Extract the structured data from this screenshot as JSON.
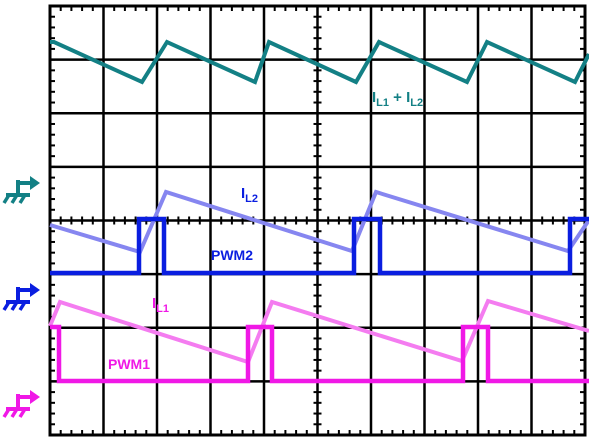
{
  "labels": {
    "il1_il2": {
      "I": "I",
      "sub1": "L1",
      "plus": " + I",
      "sub2": "L2"
    },
    "il2": {
      "I": "I",
      "sub": "L2"
    },
    "pwm2": "PWM2",
    "il1": {
      "I": "I",
      "sub": "L1"
    },
    "pwm1": "PWM1"
  },
  "colors": {
    "sum": "#138085",
    "il2": "#8686f0",
    "pwm2": "#0a1ee0",
    "il1": "#f47cf0",
    "pwm1": "#f018e6",
    "grid": "#000000",
    "background": "#ffffff"
  },
  "ground_markers": [
    {
      "channel": "sum",
      "color": "#138085",
      "icon": "ground-icon"
    },
    {
      "channel": "pwm2",
      "color": "#0a1ee0",
      "icon": "ground-icon"
    },
    {
      "channel": "pwm1",
      "color": "#f018e6",
      "icon": "ground-icon"
    }
  ]
}
